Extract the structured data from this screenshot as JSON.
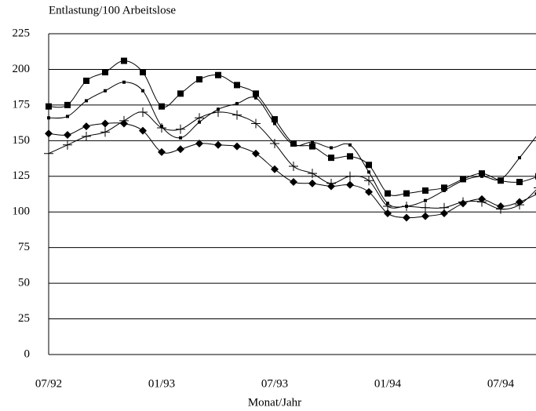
{
  "chart_data": {
    "type": "line",
    "title": "Entlastung/100 Arbeitslose",
    "xlabel": "Monat/Jahr",
    "categories": [
      "07/92",
      null,
      null,
      null,
      null,
      null,
      "01/93",
      null,
      null,
      null,
      null,
      null,
      "07/93",
      null,
      null,
      null,
      null,
      null,
      "01/94",
      null,
      null,
      null,
      null,
      null,
      "07/94",
      null,
      null
    ],
    "series": [
      {
        "color": "#000000",
        "marker": "square",
        "values": [
          174,
          175,
          192,
          198,
          206,
          198,
          174,
          183,
          193,
          196,
          189,
          183,
          165,
          148,
          146,
          138,
          139,
          133,
          113,
          113,
          115,
          117,
          123,
          127,
          122,
          121,
          125
        ]
      },
      {
        "color": "#000000",
        "marker": "small-square",
        "values": [
          166,
          167,
          178,
          185,
          191,
          185,
          160,
          152,
          163,
          172,
          176,
          180,
          162,
          147,
          149,
          145,
          147,
          128,
          106,
          104,
          108,
          115,
          122,
          125,
          123,
          138,
          155
        ]
      },
      {
        "color": "#000000",
        "marker": "plus",
        "values": [
          141,
          147,
          153,
          156,
          164,
          170,
          159,
          158,
          166,
          170,
          168,
          162,
          148,
          132,
          127,
          120,
          125,
          122,
          104,
          104,
          103,
          103,
          107,
          107,
          102,
          105,
          117
        ]
      },
      {
        "color": "#000000",
        "marker": "diamond",
        "values": [
          155,
          154,
          160,
          162,
          162,
          157,
          142,
          144,
          148,
          147,
          146,
          141,
          130,
          121,
          120,
          118,
          119,
          114,
          99,
          96,
          97,
          99,
          106,
          109,
          104,
          107,
          113
        ]
      }
    ],
    "ylim": [
      0,
      225
    ],
    "yticks": [
      0,
      25,
      50,
      75,
      100,
      125,
      150,
      175,
      200,
      225
    ],
    "grid": true
  }
}
